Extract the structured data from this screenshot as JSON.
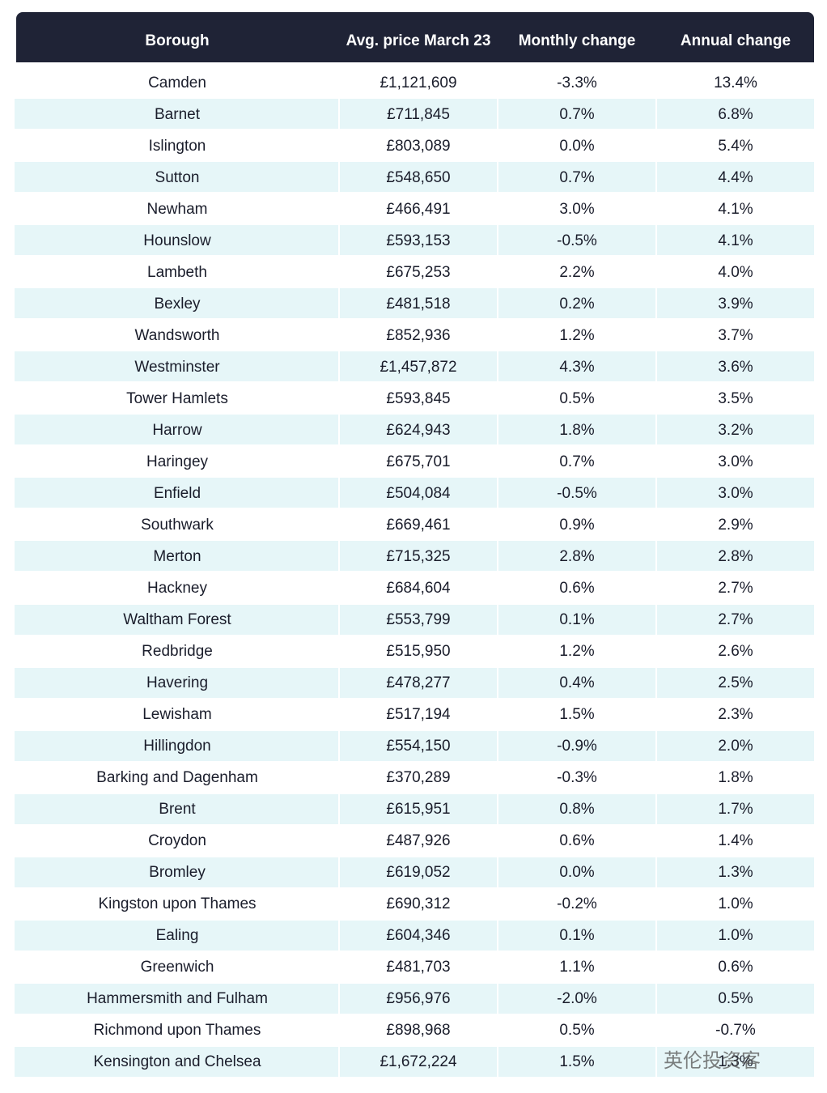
{
  "table": {
    "headers": [
      "Borough",
      "Avg. price March 23",
      "Monthly change",
      "Annual change"
    ],
    "rows": [
      [
        "Camden",
        "£1,121,609",
        "-3.3%",
        "13.4%"
      ],
      [
        "Barnet",
        "£711,845",
        "0.7%",
        "6.8%"
      ],
      [
        "Islington",
        "£803,089",
        "0.0%",
        "5.4%"
      ],
      [
        "Sutton",
        "£548,650",
        "0.7%",
        "4.4%"
      ],
      [
        "Newham",
        "£466,491",
        "3.0%",
        "4.1%"
      ],
      [
        "Hounslow",
        "£593,153",
        "-0.5%",
        "4.1%"
      ],
      [
        "Lambeth",
        "£675,253",
        "2.2%",
        "4.0%"
      ],
      [
        "Bexley",
        "£481,518",
        "0.2%",
        "3.9%"
      ],
      [
        "Wandsworth",
        "£852,936",
        "1.2%",
        "3.7%"
      ],
      [
        "Westminster",
        "£1,457,872",
        "4.3%",
        "3.6%"
      ],
      [
        "Tower Hamlets",
        "£593,845",
        "0.5%",
        "3.5%"
      ],
      [
        "Harrow",
        "£624,943",
        "1.8%",
        "3.2%"
      ],
      [
        "Haringey",
        "£675,701",
        "0.7%",
        "3.0%"
      ],
      [
        "Enfield",
        "£504,084",
        "-0.5%",
        "3.0%"
      ],
      [
        "Southwark",
        "£669,461",
        "0.9%",
        "2.9%"
      ],
      [
        "Merton",
        "£715,325",
        "2.8%",
        "2.8%"
      ],
      [
        "Hackney",
        "£684,604",
        "0.6%",
        "2.7%"
      ],
      [
        "Waltham Forest",
        "£553,799",
        "0.1%",
        "2.7%"
      ],
      [
        "Redbridge",
        "£515,950",
        "1.2%",
        "2.6%"
      ],
      [
        "Havering",
        "£478,277",
        "0.4%",
        "2.5%"
      ],
      [
        "Lewisham",
        "£517,194",
        "1.5%",
        "2.3%"
      ],
      [
        "Hillingdon",
        "£554,150",
        "-0.9%",
        "2.0%"
      ],
      [
        "Barking and Dagenham",
        "£370,289",
        "-0.3%",
        "1.8%"
      ],
      [
        "Brent",
        "£615,951",
        "0.8%",
        "1.7%"
      ],
      [
        "Croydon",
        "£487,926",
        "0.6%",
        "1.4%"
      ],
      [
        "Bromley",
        "£619,052",
        "0.0%",
        "1.3%"
      ],
      [
        "Kingston upon Thames",
        "£690,312",
        "-0.2%",
        "1.0%"
      ],
      [
        "Ealing",
        "£604,346",
        "0.1%",
        "1.0%"
      ],
      [
        "Greenwich",
        "£481,703",
        "1.1%",
        "0.6%"
      ],
      [
        "Hammersmith and Fulham",
        "£956,976",
        "-2.0%",
        "0.5%"
      ],
      [
        "Richmond upon Thames",
        "£898,968",
        "0.5%",
        "-0.7%"
      ],
      [
        "Kensington and Chelsea",
        "£1,672,224",
        "1.5%",
        "1.3%"
      ]
    ]
  },
  "watermark": "英伦投资客"
}
